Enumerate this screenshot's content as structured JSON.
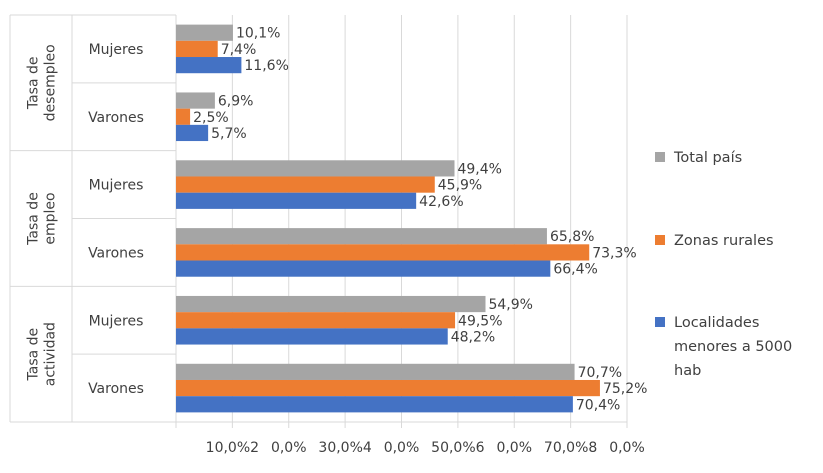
{
  "chart_data": {
    "type": "bar",
    "orientation": "horizontal",
    "groups": [
      {
        "label_lines": [
          "Tasa de",
          "desempleo"
        ],
        "categories": [
          {
            "label": "Mujeres",
            "values": [
              10.1,
              7.4,
              11.6
            ],
            "labels": [
              "10,1%",
              "7,4%",
              "11,6%"
            ]
          },
          {
            "label": "Varones",
            "values": [
              6.9,
              2.5,
              5.7
            ],
            "labels": [
              "6,9%",
              "2,5%",
              "5,7%"
            ]
          }
        ]
      },
      {
        "label_lines": [
          "Tasa de",
          "empleo"
        ],
        "categories": [
          {
            "label": "Mujeres",
            "values": [
              49.4,
              45.9,
              42.6
            ],
            "labels": [
              "49,4%",
              "45,9%",
              "42,6%"
            ]
          },
          {
            "label": "Varones",
            "values": [
              65.8,
              73.3,
              66.4
            ],
            "labels": [
              "65,8%",
              "73,3%",
              "66,4%"
            ]
          }
        ]
      },
      {
        "label_lines": [
          "Tasa de",
          "actividad"
        ],
        "categories": [
          {
            "label": "Mujeres",
            "values": [
              54.9,
              49.5,
              48.2
            ],
            "labels": [
              "54,9%",
              "49,5%",
              "48,2%"
            ]
          },
          {
            "label": "Varones",
            "values": [
              70.7,
              75.2,
              70.4
            ],
            "labels": [
              "70,7%",
              "75,2%",
              "70,4%"
            ]
          }
        ]
      }
    ],
    "series": [
      {
        "name_lines": [
          "Total país"
        ],
        "color": "#a5a5a5"
      },
      {
        "name_lines": [
          "Zonas rurales"
        ],
        "color": "#ed7d31"
      },
      {
        "name_lines": [
          "Localidades",
          "menores a 5000",
          "hab"
        ],
        "color": "#4472c4"
      }
    ],
    "x_tick_labels": [
      "",
      "10,0%2",
      "0,0%",
      "30,0%4",
      "0,0%",
      "50,0%6",
      "0,0%",
      "70,0%8",
      "0,0%"
    ],
    "xlim": [
      0,
      80
    ],
    "legend_position": "right",
    "grid": true
  }
}
